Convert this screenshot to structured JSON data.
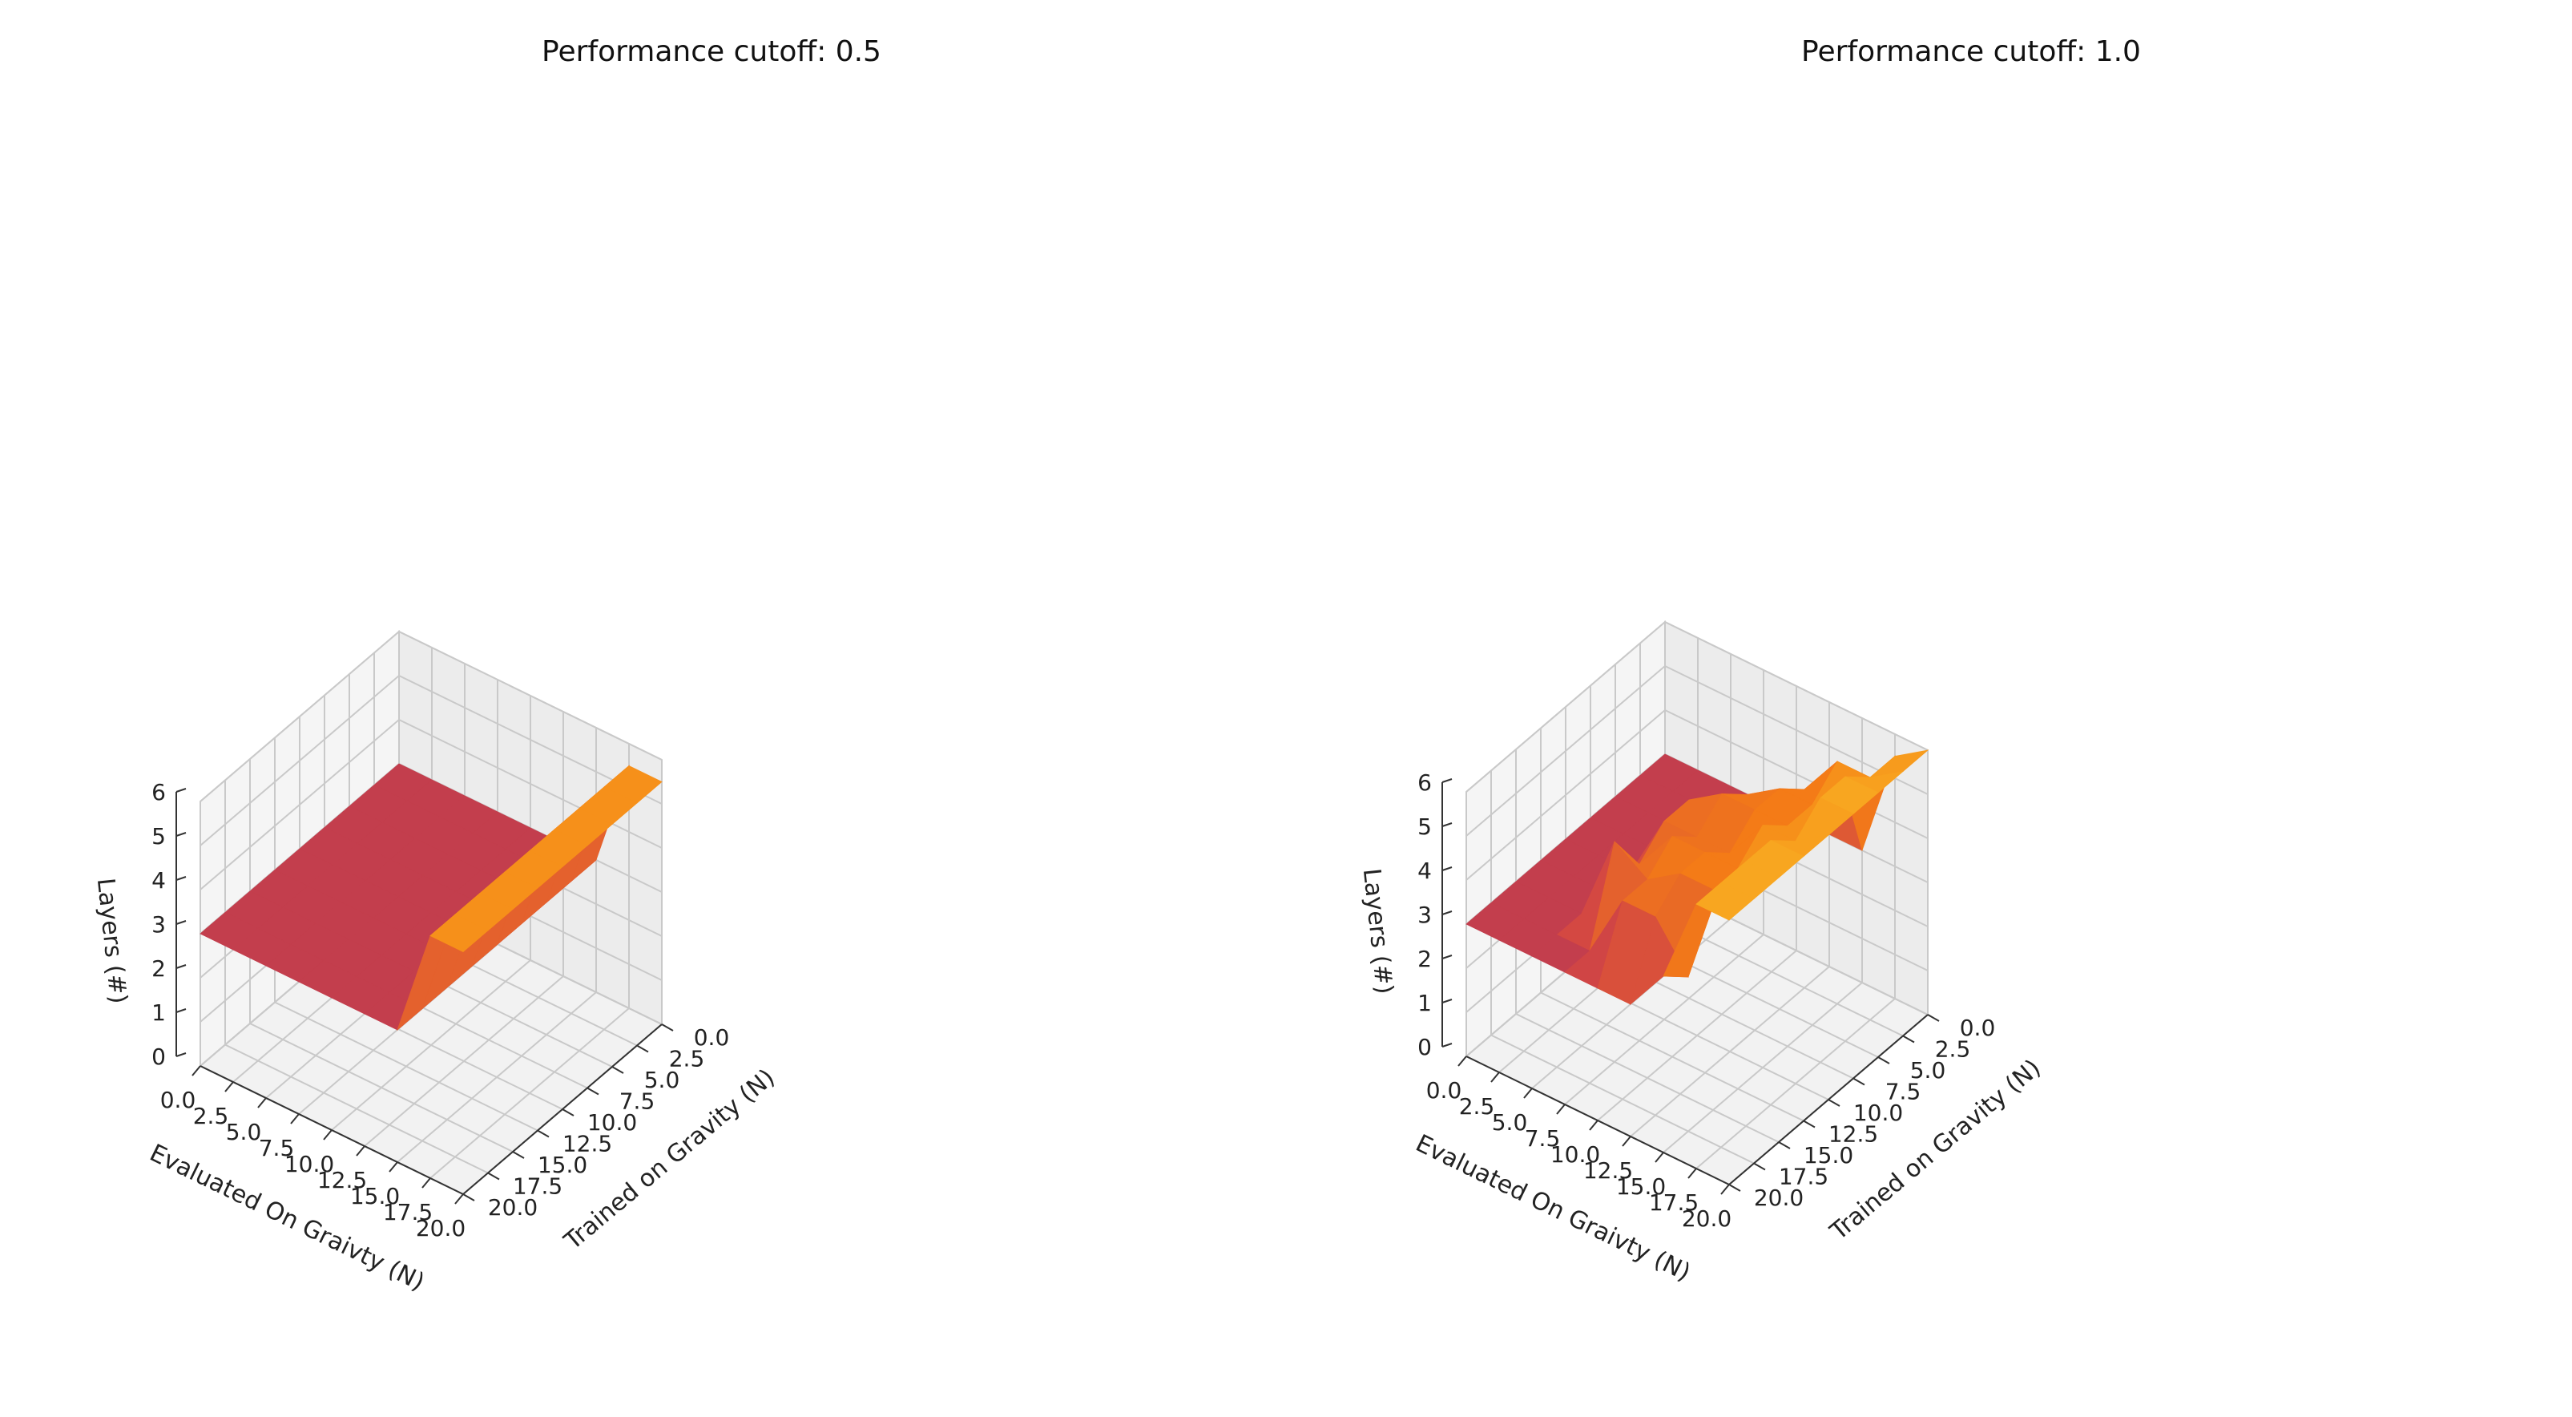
{
  "chart_data": [
    {
      "type": "surface3d",
      "title": "Performance cutoff: 0.5",
      "xlabel": "Evaluated On Graivty (N)",
      "ylabel": "Trained on Gravity (N)",
      "zlabel": "Layers (#)",
      "xticks": [
        "0.0",
        "2.5",
        "5.0",
        "7.5",
        "10.0",
        "12.5",
        "15.0",
        "17.5",
        "20.0"
      ],
      "yticks": [
        "0.0",
        "2.5",
        "5.0",
        "7.5",
        "10.0",
        "12.5",
        "15.0",
        "17.5",
        "20.0"
      ],
      "zticks": [
        "0",
        "1",
        "2",
        "3",
        "4",
        "5",
        "6"
      ],
      "xlim": [
        0,
        20
      ],
      "ylim": [
        0,
        20
      ],
      "zlim": [
        0,
        6
      ],
      "colormap": "inferno",
      "eval_gravity": [
        0,
        2.5,
        5,
        7.5,
        10,
        12.5,
        15,
        17.5,
        20
      ],
      "trained_gravity": [
        0,
        2.5,
        5,
        7.5,
        10,
        12.5,
        15,
        17.5,
        20
      ],
      "layers": [
        [
          3,
          3,
          3,
          3,
          3,
          3,
          3,
          3,
          3
        ],
        [
          3,
          3,
          3,
          3,
          3,
          3,
          3,
          3,
          3
        ],
        [
          3,
          3,
          3,
          3,
          3,
          3,
          3,
          3,
          3
        ],
        [
          3,
          3,
          3,
          3,
          3,
          3,
          3,
          3,
          3
        ],
        [
          3,
          3,
          3,
          3,
          3,
          3,
          3,
          3,
          3
        ],
        [
          3,
          3,
          3,
          3,
          3,
          3,
          3,
          3,
          3
        ],
        [
          3,
          3,
          3,
          3,
          3,
          3,
          3,
          3,
          3
        ],
        [
          5.5,
          5.5,
          5.5,
          5.5,
          5.5,
          5.5,
          5.5,
          5.5,
          5.5
        ],
        [
          5.5,
          5.5,
          5.5,
          5.5,
          5.5,
          5.5,
          5.5,
          5.5,
          5.5
        ]
      ]
    },
    {
      "type": "surface3d",
      "title": "Performance cutoff: 1.0",
      "xlabel": "Evaluated On Graivty (N)",
      "ylabel": "Trained on Gravity (N)",
      "zlabel": "Layers (#)",
      "xticks": [
        "0.0",
        "2.5",
        "5.0",
        "7.5",
        "10.0",
        "12.5",
        "15.0",
        "17.5",
        "20.0"
      ],
      "yticks": [
        "0.0",
        "2.5",
        "5.0",
        "7.5",
        "10.0",
        "12.5",
        "15.0",
        "17.5",
        "20.0"
      ],
      "zticks": [
        "0",
        "1",
        "2",
        "3",
        "4",
        "5",
        "6"
      ],
      "xlim": [
        0,
        20
      ],
      "ylim": [
        0,
        20
      ],
      "zlim": [
        0,
        6
      ],
      "colormap": "inferno",
      "eval_gravity": [
        0,
        2.5,
        5,
        7.5,
        10,
        12.5,
        15,
        17.5,
        20
      ],
      "trained_gravity": [
        0,
        2.5,
        5,
        7.5,
        10,
        12.5,
        15,
        17.5,
        20
      ],
      "layers": [
        [
          3,
          3,
          3,
          3,
          3,
          3,
          3,
          3,
          3
        ],
        [
          3,
          3,
          3,
          3,
          3,
          3,
          3,
          3,
          3
        ],
        [
          3,
          3,
          3,
          3,
          3,
          3,
          3,
          3,
          3
        ],
        [
          3,
          3,
          3,
          4.5,
          4.5,
          4,
          5,
          3,
          3
        ],
        [
          3,
          3,
          4.5,
          5,
          4.5,
          5,
          4.5,
          4.5,
          3
        ],
        [
          3,
          4.5,
          5,
          5,
          4.5,
          5,
          5,
          4.5,
          3
        ],
        [
          3,
          5.5,
          5,
          5,
          5.5,
          5,
          5,
          3.5,
          4
        ],
        [
          5.5,
          5.5,
          6,
          6,
          5.5,
          6,
          6,
          6,
          6
        ],
        [
          6,
          6,
          6,
          6,
          6,
          6,
          6,
          6,
          6
        ]
      ]
    }
  ]
}
